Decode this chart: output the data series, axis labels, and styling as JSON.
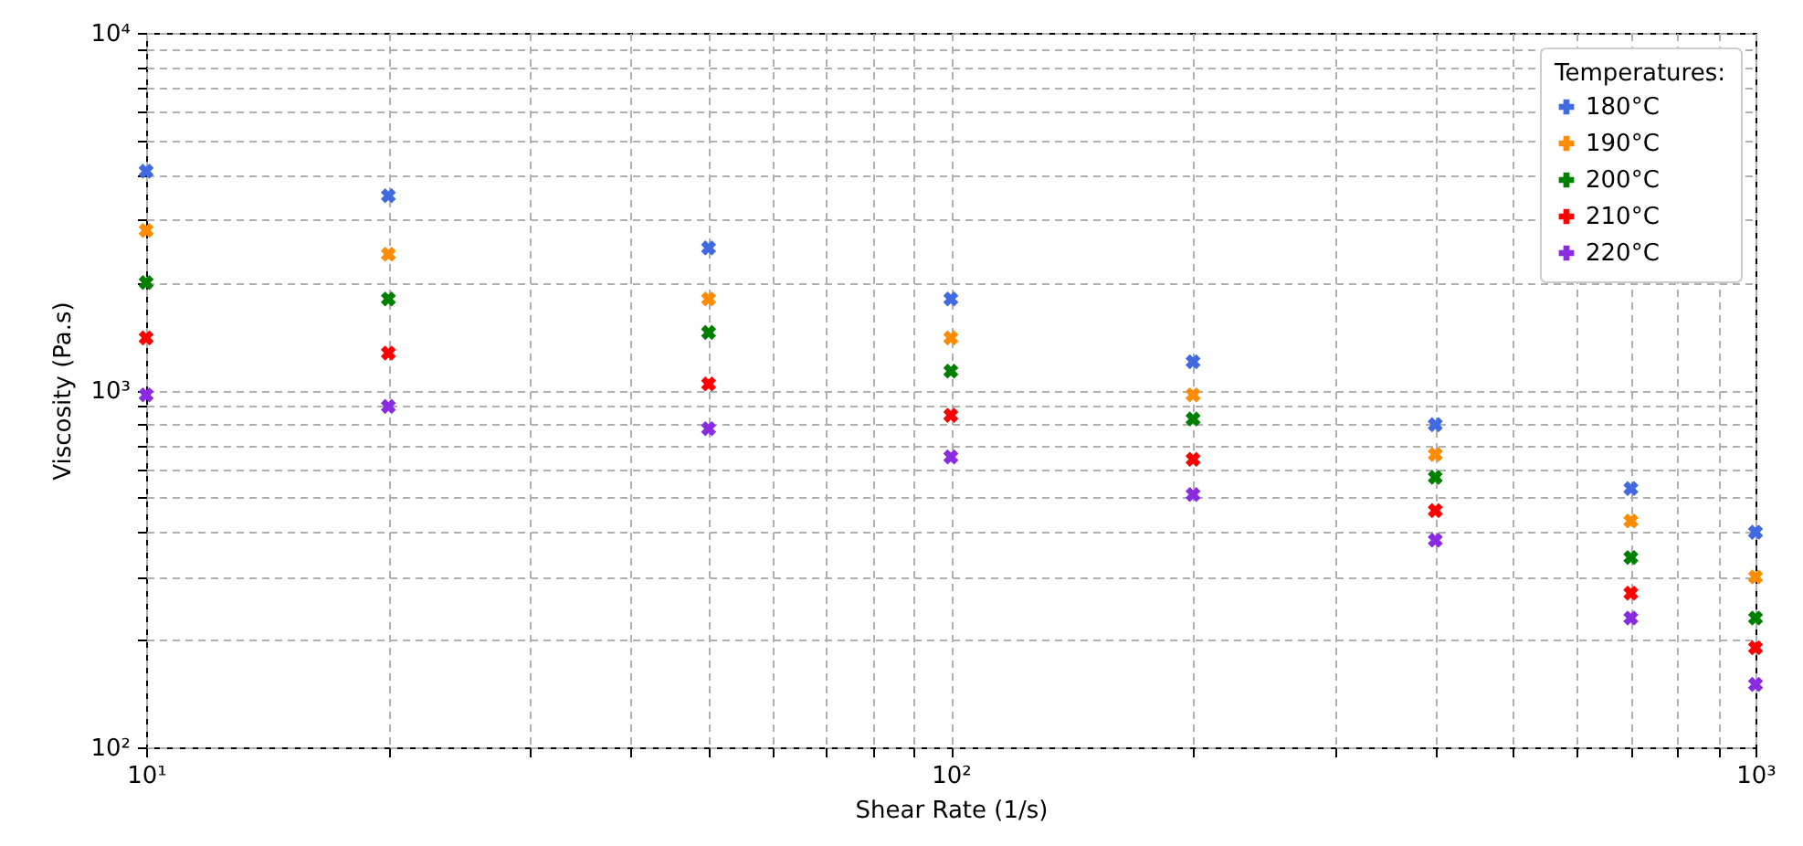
{
  "chart_data": {
    "type": "scatter",
    "xlabel": "Shear Rate (1/s)",
    "ylabel": "Viscosity (Pa.s)",
    "legend_title": "Temperatures:",
    "legend": "top right",
    "grid": true,
    "log": "xy",
    "marker": "cross",
    "x": [
      10,
      20,
      50,
      100,
      200,
      400,
      700,
      1000
    ],
    "series": [
      {
        "name": "180°C",
        "color": "#4169e1",
        "values": [
          4100,
          3500,
          2500,
          1800,
          1200,
          800,
          530,
          400
        ]
      },
      {
        "name": "190°C",
        "color": "#ff8c00",
        "values": [
          2800,
          2400,
          1800,
          1400,
          970,
          660,
          430,
          300
        ]
      },
      {
        "name": "200°C",
        "color": "#008000",
        "values": [
          2000,
          1800,
          1450,
          1130,
          830,
          570,
          340,
          230
        ]
      },
      {
        "name": "210°C",
        "color": "#ff0000",
        "values": [
          1400,
          1270,
          1040,
          850,
          640,
          460,
          270,
          190
        ]
      },
      {
        "name": "220°C",
        "color": "#8a2be2",
        "values": [
          970,
          900,
          780,
          650,
          510,
          380,
          230,
          150
        ]
      }
    ],
    "xlim": [
      10,
      1000
    ],
    "ylim": [
      100,
      10000
    ],
    "xticks": [
      {
        "value": 10,
        "label": "10¹"
      },
      {
        "value": 20,
        "label": null
      },
      {
        "value": 30,
        "label": null
      },
      {
        "value": 40,
        "label": null
      },
      {
        "value": 50,
        "label": null
      },
      {
        "value": 60,
        "label": null
      },
      {
        "value": 70,
        "label": null
      },
      {
        "value": 80,
        "label": null
      },
      {
        "value": 90,
        "label": null
      },
      {
        "value": 100,
        "label": "10²"
      },
      {
        "value": 200,
        "label": null
      },
      {
        "value": 300,
        "label": null
      },
      {
        "value": 400,
        "label": null
      },
      {
        "value": 500,
        "label": null
      },
      {
        "value": 600,
        "label": null
      },
      {
        "value": 700,
        "label": null
      },
      {
        "value": 800,
        "label": null
      },
      {
        "value": 900,
        "label": null
      },
      {
        "value": 1000,
        "label": "10³"
      }
    ],
    "yticks": [
      {
        "value": 100,
        "label": "10²"
      },
      {
        "value": 200,
        "label": null
      },
      {
        "value": 300,
        "label": null
      },
      {
        "value": 400,
        "label": null
      },
      {
        "value": 500,
        "label": null
      },
      {
        "value": 600,
        "label": null
      },
      {
        "value": 700,
        "label": null
      },
      {
        "value": 800,
        "label": null
      },
      {
        "value": 900,
        "label": null
      },
      {
        "value": 1000,
        "label": "10³"
      },
      {
        "value": 2000,
        "label": null
      },
      {
        "value": 3000,
        "label": null
      },
      {
        "value": 4000,
        "label": null
      },
      {
        "value": 5000,
        "label": null
      },
      {
        "value": 6000,
        "label": null
      },
      {
        "value": 7000,
        "label": null
      },
      {
        "value": 8000,
        "label": null
      },
      {
        "value": 9000,
        "label": null
      },
      {
        "value": 10000,
        "label": "10⁴"
      }
    ]
  }
}
